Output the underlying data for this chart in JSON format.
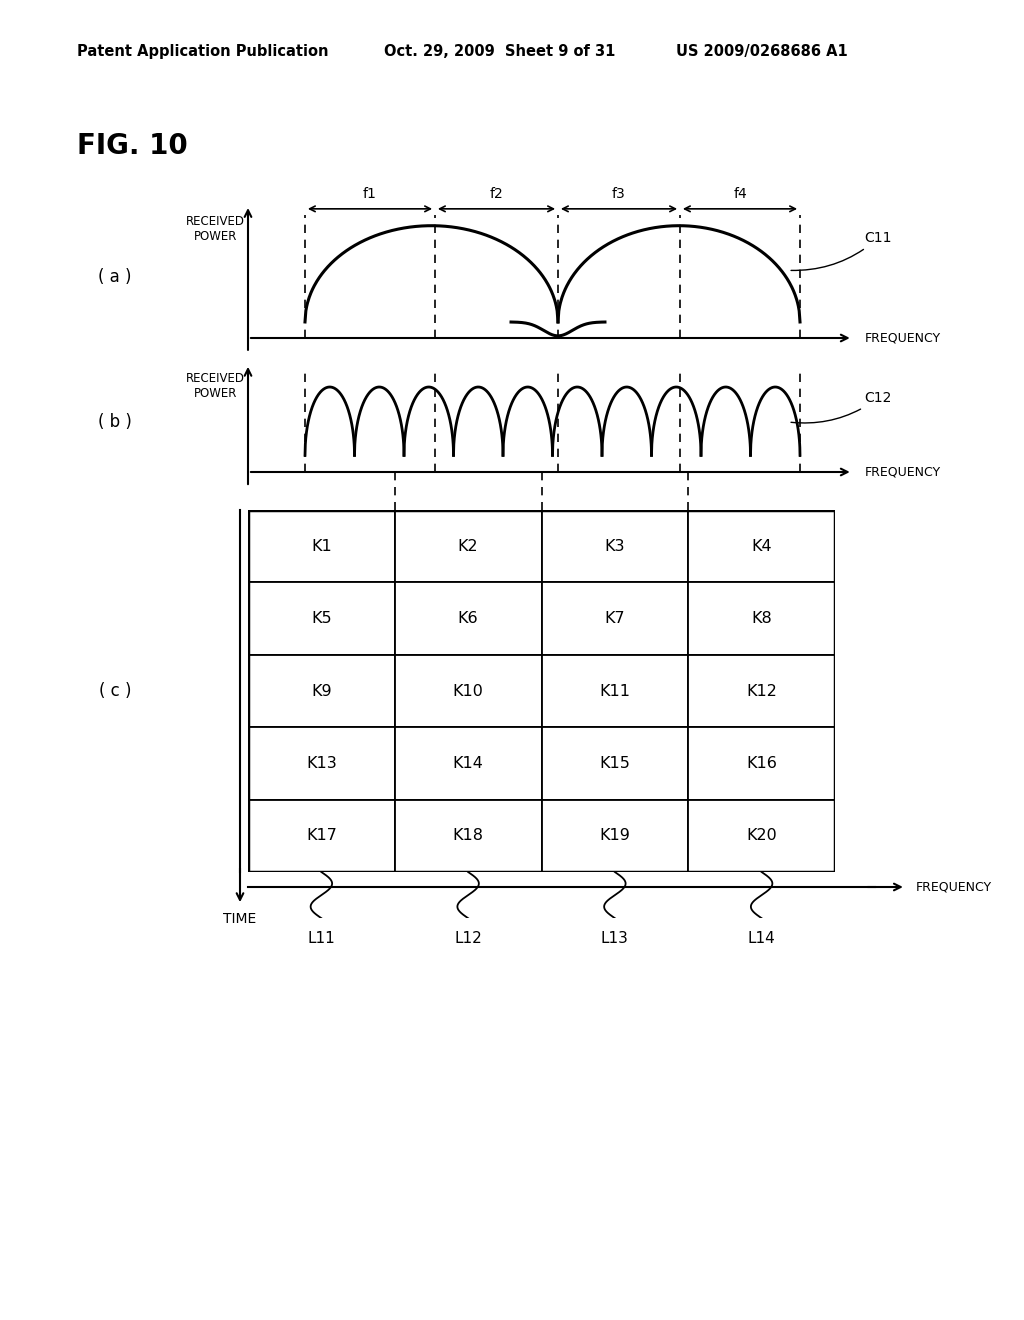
{
  "header_left": "Patent Application Publication",
  "header_mid": "Oct. 29, 2009  Sheet 9 of 31",
  "header_right": "US 2009/0268686 A1",
  "fig_label": "FIG. 10",
  "panel_a_label": "( a )",
  "panel_b_label": "( b )",
  "panel_c_label": "( c )",
  "panel_a_ylabel": "RECEIVED\nPOWER",
  "panel_b_ylabel": "RECEIVED\nPOWER",
  "freq_label": "FREQUENCY",
  "time_label": "TIME",
  "c11_label": "C11",
  "c12_label": "C12",
  "f_labels": [
    "f1",
    "f2",
    "f3",
    "f4"
  ],
  "grid_labels": [
    [
      "K1",
      "K2",
      "K3",
      "K4"
    ],
    [
      "K5",
      "K6",
      "K7",
      "K8"
    ],
    [
      "K9",
      "K10",
      "K11",
      "K12"
    ],
    [
      "K13",
      "K14",
      "K15",
      "K16"
    ],
    [
      "K17",
      "K18",
      "K19",
      "K20"
    ]
  ],
  "l_labels": [
    "L11",
    "L12",
    "L13",
    "L14"
  ],
  "bg_color": "#ffffff",
  "line_color": "#000000"
}
